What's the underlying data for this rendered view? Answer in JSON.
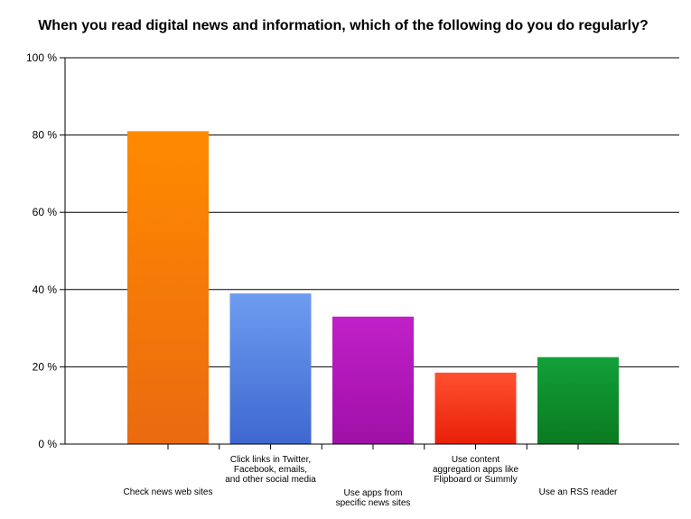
{
  "chart_data": {
    "type": "bar",
    "title": "When you read digital news and information, which of the following do you do regularly?",
    "xlabel": "",
    "ylabel": "",
    "ylim": [
      0,
      100
    ],
    "yticks": [
      "0 %",
      "20 %",
      "40 %",
      "60 %",
      "80 %",
      "100 %"
    ],
    "ytick_values": [
      0,
      20,
      40,
      60,
      80,
      100
    ],
    "grid": true,
    "categories": [
      "Check news web sites",
      "Click links in Twitter, Facebook, emails, and other social media",
      "Use apps from specific news sites",
      "Use content aggregation apps like Flipboard or Summly",
      "Use an RSS reader"
    ],
    "category_label_lines": [
      [
        "Check news web sites"
      ],
      [
        "Click links in Twitter,",
        "Facebook, emails,",
        "and other social media"
      ],
      [
        "Use apps from",
        "specific news sites"
      ],
      [
        "Use content",
        "aggregation apps like",
        "Flipboard or Summly"
      ],
      [
        "Use an RSS reader"
      ]
    ],
    "category_label_row": [
      "low",
      "high",
      "low",
      "high",
      "low"
    ],
    "values": [
      81,
      39,
      33,
      18.5,
      22.5
    ],
    "colors": [
      [
        "#ff8a00",
        "#ea6a10"
      ],
      [
        "#6e9cf0",
        "#3e68d0"
      ],
      [
        "#c020c8",
        "#a010a8"
      ],
      [
        "#ff5030",
        "#e82008"
      ],
      [
        "#12a03a",
        "#0a7a20"
      ]
    ]
  }
}
